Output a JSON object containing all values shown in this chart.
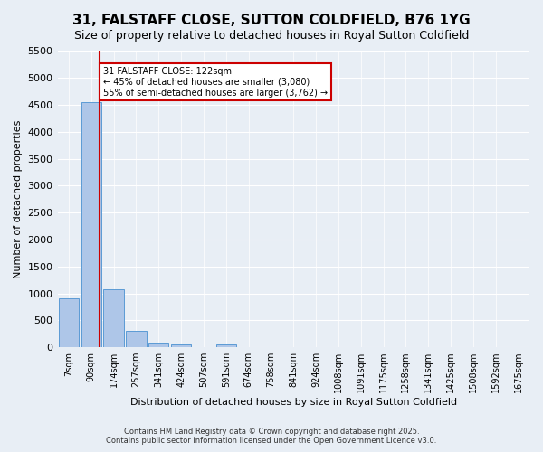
{
  "title": "31, FALSTAFF CLOSE, SUTTON COLDFIELD, B76 1YG",
  "subtitle": "Size of property relative to detached houses in Royal Sutton Coldfield",
  "xlabel": "Distribution of detached houses by size in Royal Sutton Coldfield",
  "ylabel": "Number of detached properties",
  "bin_labels": [
    "7sqm",
    "90sqm",
    "174sqm",
    "257sqm",
    "341sqm",
    "424sqm",
    "507sqm",
    "591sqm",
    "674sqm",
    "758sqm",
    "841sqm",
    "924sqm",
    "1008sqm",
    "1091sqm",
    "1175sqm",
    "1258sqm",
    "1341sqm",
    "1425sqm",
    "1508sqm",
    "1592sqm",
    "1675sqm"
  ],
  "bar_values": [
    900,
    4550,
    1080,
    300,
    80,
    50,
    0,
    50,
    0,
    0,
    0,
    0,
    0,
    0,
    0,
    0,
    0,
    0,
    0,
    0,
    0
  ],
  "bar_color": "#aec6e8",
  "bar_edgecolor": "#5b9bd5",
  "bin_edges": [
    7,
    90,
    174,
    257,
    341,
    424,
    507,
    591,
    674,
    758,
    841,
    924,
    1008,
    1091,
    1175,
    1258,
    1341,
    1425,
    1508,
    1592,
    1675
  ],
  "property_size": 122,
  "annotation_line1": "31 FALSTAFF CLOSE: 122sqm",
  "annotation_line2": "← 45% of detached houses are smaller (3,080)",
  "annotation_line3": "55% of semi-detached houses are larger (3,762) →",
  "vline_color": "#cc0000",
  "annotation_box_color": "#cc0000",
  "ylim": [
    0,
    5500
  ],
  "yticks": [
    0,
    500,
    1000,
    1500,
    2000,
    2500,
    3000,
    3500,
    4000,
    4500,
    5000,
    5500
  ],
  "footer_line1": "Contains HM Land Registry data © Crown copyright and database right 2025.",
  "footer_line2": "Contains public sector information licensed under the Open Government Licence v3.0.",
  "background_color": "#e8eef5",
  "plot_background": "#e8eef5"
}
